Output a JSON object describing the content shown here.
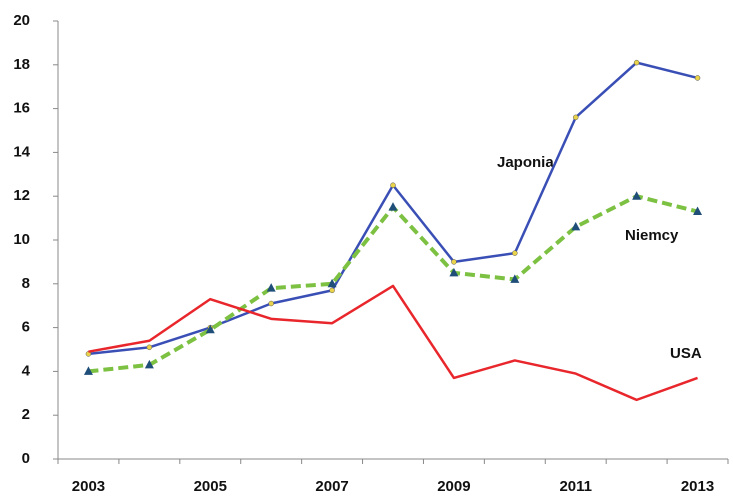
{
  "chart_data": {
    "type": "line",
    "categories": [
      "2003",
      null,
      "2005",
      null,
      "2007",
      null,
      "2009",
      null,
      "2011",
      null,
      "2013"
    ],
    "series": [
      {
        "name": "Japonia",
        "color": "#3a4fb5",
        "values": [
          4.8,
          5.1,
          6.0,
          7.1,
          7.7,
          12.5,
          9.0,
          9.4,
          15.6,
          18.1,
          17.4
        ]
      },
      {
        "name": "Niemcy",
        "color": "#7dc142",
        "values": [
          4.0,
          4.3,
          5.9,
          7.8,
          8.0,
          11.5,
          8.5,
          8.2,
          10.6,
          12.0,
          11.3
        ]
      },
      {
        "name": "USA",
        "color": "#e8262b",
        "values": [
          4.9,
          5.4,
          7.3,
          6.4,
          6.2,
          7.9,
          3.7,
          4.5,
          3.9,
          2.7,
          3.7
        ]
      }
    ],
    "ylim": [
      0,
      20
    ],
    "yticks": [
      0,
      2,
      4,
      6,
      8,
      10,
      12,
      14,
      16,
      18,
      20
    ],
    "grid": false
  }
}
